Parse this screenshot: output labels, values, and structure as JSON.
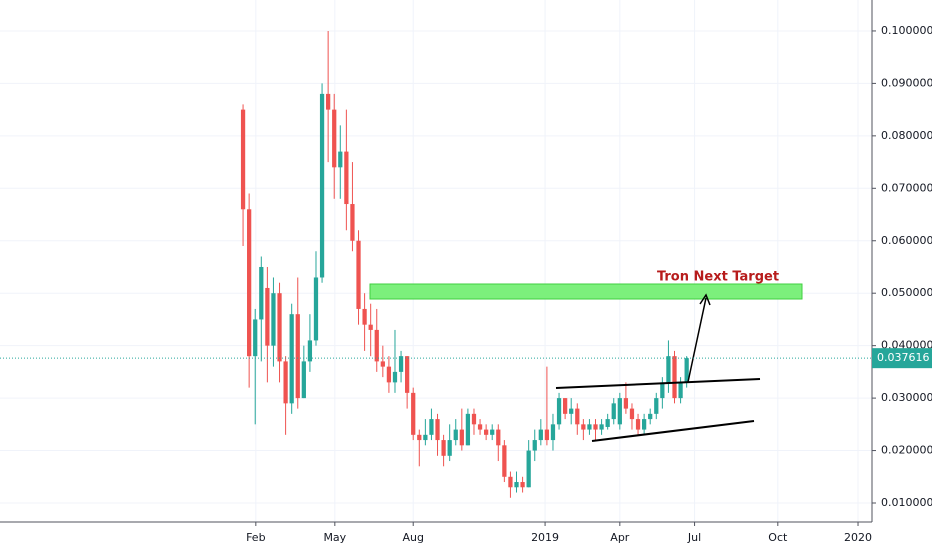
{
  "chart_data": {
    "type": "candlestick",
    "annotation": "Tron Next Target",
    "candles": {
      "x": [
        0,
        1,
        2,
        3,
        4,
        5,
        6,
        7,
        8,
        9,
        10,
        11,
        12,
        13,
        14,
        15,
        16,
        17,
        18,
        19,
        20,
        21,
        22,
        23,
        24,
        25,
        26,
        27,
        28,
        29,
        30,
        31,
        32,
        33,
        34,
        35,
        36,
        37,
        38,
        39,
        40,
        41,
        42,
        43,
        44,
        45,
        46,
        47,
        48,
        49,
        50,
        51,
        52,
        53,
        54,
        55,
        56,
        57,
        58,
        59,
        60,
        61,
        62,
        63,
        64,
        65,
        66,
        67,
        68,
        69,
        70,
        71,
        72,
        73
      ],
      "open": [
        0.085,
        0.066,
        0.038,
        0.045,
        0.051,
        0.04,
        0.05,
        0.037,
        0.029,
        0.046,
        0.03,
        0.037,
        0.041,
        0.053,
        0.088,
        0.085,
        0.074,
        0.077,
        0.067,
        0.06,
        0.047,
        0.044,
        0.043,
        0.037,
        0.036,
        0.033,
        0.035,
        0.038,
        0.031,
        0.023,
        0.022,
        0.023,
        0.026,
        0.022,
        0.019,
        0.022,
        0.024,
        0.021,
        0.027,
        0.025,
        0.024,
        0.023,
        0.024,
        0.021,
        0.015,
        0.013,
        0.014,
        0.013,
        0.02,
        0.022,
        0.024,
        0.022,
        0.025,
        0.03,
        0.027,
        0.028,
        0.025,
        0.024,
        0.025,
        0.024,
        0.0245,
        0.026,
        0.025,
        0.03,
        0.028,
        0.026,
        0.024,
        0.026,
        0.027,
        0.03,
        0.033,
        0.038,
        0.03,
        0.033
      ],
      "high": [
        0.086,
        0.069,
        0.047,
        0.057,
        0.055,
        0.053,
        0.052,
        0.038,
        0.048,
        0.053,
        0.04,
        0.046,
        0.058,
        0.09,
        0.1,
        0.088,
        0.082,
        0.085,
        0.075,
        0.062,
        0.05,
        0.048,
        0.047,
        0.04,
        0.038,
        0.043,
        0.039,
        0.038,
        0.032,
        0.024,
        0.026,
        0.028,
        0.027,
        0.023,
        0.025,
        0.026,
        0.028,
        0.028,
        0.028,
        0.026,
        0.025,
        0.025,
        0.025,
        0.022,
        0.016,
        0.016,
        0.015,
        0.022,
        0.024,
        0.026,
        0.036,
        0.027,
        0.031,
        0.03,
        0.03,
        0.029,
        0.026,
        0.026,
        0.026,
        0.026,
        0.027,
        0.03,
        0.031,
        0.033,
        0.029,
        0.027,
        0.027,
        0.028,
        0.031,
        0.034,
        0.041,
        0.039,
        0.034,
        0.038
      ],
      "low": [
        0.059,
        0.032,
        0.025,
        0.037,
        0.033,
        0.036,
        0.033,
        0.023,
        0.027,
        0.028,
        0.03,
        0.035,
        0.04,
        0.052,
        0.075,
        0.068,
        0.068,
        0.062,
        0.058,
        0.044,
        0.039,
        0.038,
        0.035,
        0.034,
        0.031,
        0.031,
        0.033,
        0.028,
        0.022,
        0.017,
        0.021,
        0.022,
        0.019,
        0.017,
        0.018,
        0.021,
        0.02,
        0.021,
        0.023,
        0.023,
        0.022,
        0.022,
        0.018,
        0.014,
        0.011,
        0.012,
        0.012,
        0.013,
        0.018,
        0.021,
        0.021,
        0.02,
        0.024,
        0.026,
        0.025,
        0.023,
        0.022,
        0.023,
        0.022,
        0.023,
        0.024,
        0.025,
        0.024,
        0.027,
        0.024,
        0.023,
        0.023,
        0.025,
        0.026,
        0.028,
        0.031,
        0.029,
        0.029,
        0.032
      ],
      "close": [
        0.066,
        0.038,
        0.045,
        0.055,
        0.04,
        0.05,
        0.037,
        0.029,
        0.046,
        0.03,
        0.037,
        0.041,
        0.053,
        0.088,
        0.085,
        0.074,
        0.077,
        0.067,
        0.06,
        0.047,
        0.044,
        0.043,
        0.037,
        0.036,
        0.033,
        0.035,
        0.038,
        0.031,
        0.023,
        0.022,
        0.023,
        0.026,
        0.022,
        0.019,
        0.022,
        0.024,
        0.021,
        0.027,
        0.025,
        0.024,
        0.023,
        0.024,
        0.021,
        0.015,
        0.013,
        0.014,
        0.013,
        0.02,
        0.022,
        0.024,
        0.022,
        0.025,
        0.03,
        0.027,
        0.028,
        0.025,
        0.024,
        0.025,
        0.024,
        0.025,
        0.026,
        0.029,
        0.03,
        0.028,
        0.026,
        0.024,
        0.026,
        0.027,
        0.03,
        0.033,
        0.038,
        0.03,
        0.033,
        0.037616
      ]
    },
    "up_color": "#26a69a",
    "down_color": "#ef5350",
    "last_price": 0.037616,
    "xlim": [
      -40,
      103.5
    ],
    "xticks": [
      {
        "value": 2.1,
        "label": "Feb"
      },
      {
        "value": 15.1,
        "label": "May"
      },
      {
        "value": 28,
        "label": "Aug"
      },
      {
        "value": 49.7,
        "label": "2019"
      },
      {
        "value": 62,
        "label": "Apr"
      },
      {
        "value": 74.3,
        "label": "Jul"
      },
      {
        "value": 88,
        "label": "Oct"
      },
      {
        "value": 101.2,
        "label": "2020"
      }
    ],
    "ylim": [
      0.00638,
      0.1059
    ],
    "yticks": [
      {
        "value": 0.01,
        "label": "0.010000"
      },
      {
        "value": 0.02,
        "label": "0.020000"
      },
      {
        "value": 0.03,
        "label": "0.030000"
      },
      {
        "value": 0.04,
        "label": "0.040000"
      },
      {
        "value": 0.05,
        "label": "0.050000"
      },
      {
        "value": 0.06,
        "label": "0.060000"
      },
      {
        "value": 0.07,
        "label": "0.070000"
      },
      {
        "value": 0.08,
        "label": "0.080000"
      },
      {
        "value": 0.09,
        "label": "0.090000"
      },
      {
        "value": 0.1,
        "label": "0.100000"
      }
    ],
    "grid": true
  }
}
